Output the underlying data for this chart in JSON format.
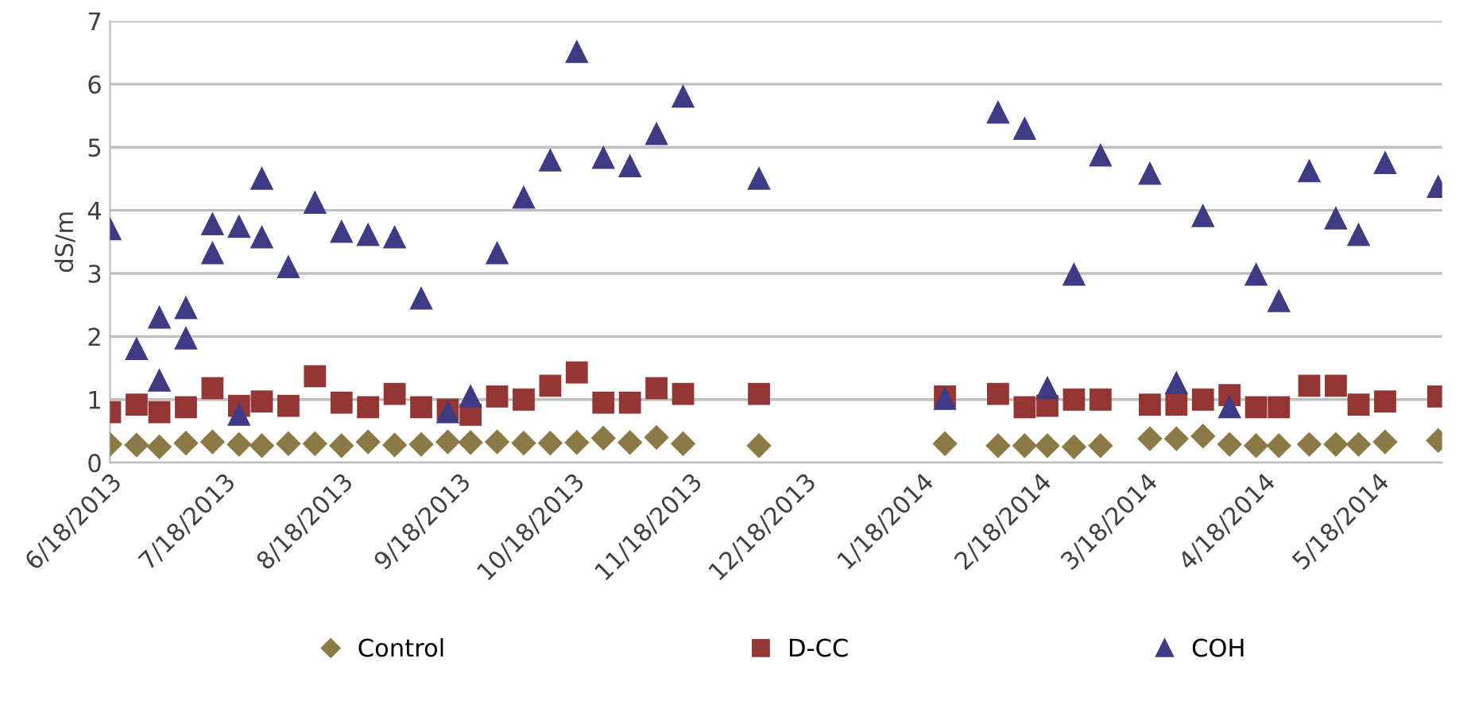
{
  "chart_data": {
    "type": "scatter",
    "ylabel": "dS/m",
    "x": [
      "2013-06-18",
      "2013-06-25",
      "2013-07-01",
      "2013-07-08",
      "2013-07-15",
      "2013-07-22",
      "2013-07-28",
      "2013-08-04",
      "2013-08-11",
      "2013-08-18",
      "2013-08-25",
      "2013-09-01",
      "2013-09-08",
      "2013-09-15",
      "2013-09-21",
      "2013-09-28",
      "2013-10-05",
      "2013-10-12",
      "2013-10-19",
      "2013-10-26",
      "2013-11-02",
      "2013-11-09",
      "2013-11-16",
      "2013-12-06",
      "2014-01-24",
      "2014-02-07",
      "2014-02-14",
      "2014-02-20",
      "2014-02-27",
      "2014-03-06",
      "2014-03-19",
      "2014-03-26",
      "2014-04-02",
      "2014-04-09",
      "2014-04-16",
      "2014-04-22",
      "2014-04-30",
      "2014-05-07",
      "2014-05-13",
      "2014-05-20",
      "2014-06-03"
    ],
    "series": [
      {
        "name": "Control",
        "color": "#8b7a45",
        "marker": "diamond",
        "values": [
          0.29,
          0.28,
          0.25,
          0.31,
          0.33,
          0.29,
          0.27,
          0.3,
          0.3,
          0.27,
          0.33,
          0.28,
          0.29,
          0.33,
          0.32,
          0.33,
          0.31,
          0.31,
          0.32,
          0.39,
          0.32,
          0.4,
          0.3,
          0.27,
          0.3,
          0.27,
          0.27,
          0.27,
          0.25,
          0.27,
          0.38,
          0.38,
          0.42,
          0.29,
          0.27,
          0.27,
          0.29,
          0.29,
          0.29,
          0.33,
          0.35
        ]
      },
      {
        "name": "D-CC",
        "color": "#943634",
        "marker": "square",
        "values": [
          0.8,
          0.92,
          0.8,
          0.88,
          1.18,
          0.9,
          0.97,
          0.9,
          1.37,
          0.95,
          0.88,
          1.09,
          0.88,
          0.84,
          0.76,
          1.05,
          1.0,
          1.22,
          1.43,
          0.95,
          0.95,
          1.18,
          1.09,
          1.09,
          1.05,
          1.09,
          0.88,
          0.9,
          1.0,
          1.0,
          0.92,
          0.92,
          1.0,
          1.07,
          0.88,
          0.88,
          1.22,
          1.22,
          0.92,
          0.97,
          1.05
        ]
      },
      {
        "name": "COH",
        "color": "#3f3a84",
        "marker": "triangle",
        "x": [
          "2013-06-18",
          "2013-06-25",
          "2013-07-01",
          "2013-07-01",
          "2013-07-08",
          "2013-07-08",
          "2013-07-15",
          "2013-07-15",
          "2013-07-22",
          "2013-07-22",
          "2013-07-28",
          "2013-07-28",
          "2013-08-04",
          "2013-08-11",
          "2013-08-18",
          "2013-08-25",
          "2013-09-01",
          "2013-09-08",
          "2013-09-15",
          "2013-09-21",
          "2013-09-28",
          "2013-10-05",
          "2013-10-12",
          "2013-10-19",
          "2013-10-26",
          "2013-11-02",
          "2013-11-09",
          "2013-11-16",
          "2013-12-06",
          "2014-01-24",
          "2014-02-07",
          "2014-02-14",
          "2014-02-20",
          "2014-02-27",
          "2014-03-06",
          "2014-03-19",
          "2014-03-26",
          "2014-04-02",
          "2014-04-09",
          "2014-04-16",
          "2014-04-22",
          "2014-04-30",
          "2014-05-07",
          "2014-05-13",
          "2014-05-20",
          "2014-06-03"
        ],
        "values": [
          3.7,
          1.8,
          2.3,
          1.3,
          2.45,
          1.97,
          3.78,
          3.32,
          3.74,
          0.76,
          4.5,
          3.57,
          3.1,
          4.12,
          3.66,
          3.61,
          3.57,
          2.6,
          0.8,
          1.05,
          3.32,
          4.2,
          4.79,
          6.51,
          4.83,
          4.7,
          5.21,
          5.8,
          4.5,
          1.01,
          5.55,
          5.29,
          1.18,
          2.98,
          4.87,
          4.58,
          1.26,
          3.91,
          0.88,
          2.98,
          2.56,
          4.62,
          3.87,
          3.61,
          4.75,
          4.37
        ]
      }
    ],
    "xlim": [
      "2013-06-18",
      "2014-06-04"
    ],
    "xticks": [
      {
        "value": "2013-06-18",
        "label": "6/18/2013"
      },
      {
        "value": "2013-07-18",
        "label": "7/18/2013"
      },
      {
        "value": "2013-08-18",
        "label": "8/18/2013"
      },
      {
        "value": "2013-09-18",
        "label": "9/18/2013"
      },
      {
        "value": "2013-10-18",
        "label": "10/18/2013"
      },
      {
        "value": "2013-11-18",
        "label": "11/18/2013"
      },
      {
        "value": "2013-12-18",
        "label": "12/18/2013"
      },
      {
        "value": "2014-01-18",
        "label": "1/18/2014"
      },
      {
        "value": "2014-02-18",
        "label": "2/18/2014"
      },
      {
        "value": "2014-03-18",
        "label": "3/18/2014"
      },
      {
        "value": "2014-04-18",
        "label": "4/18/2014"
      },
      {
        "value": "2014-05-18",
        "label": "5/18/2014"
      }
    ],
    "ylim": [
      0,
      7
    ],
    "yticks": [
      0,
      1,
      2,
      3,
      4,
      5,
      6,
      7
    ],
    "grid": "y",
    "legend": "bottom"
  }
}
